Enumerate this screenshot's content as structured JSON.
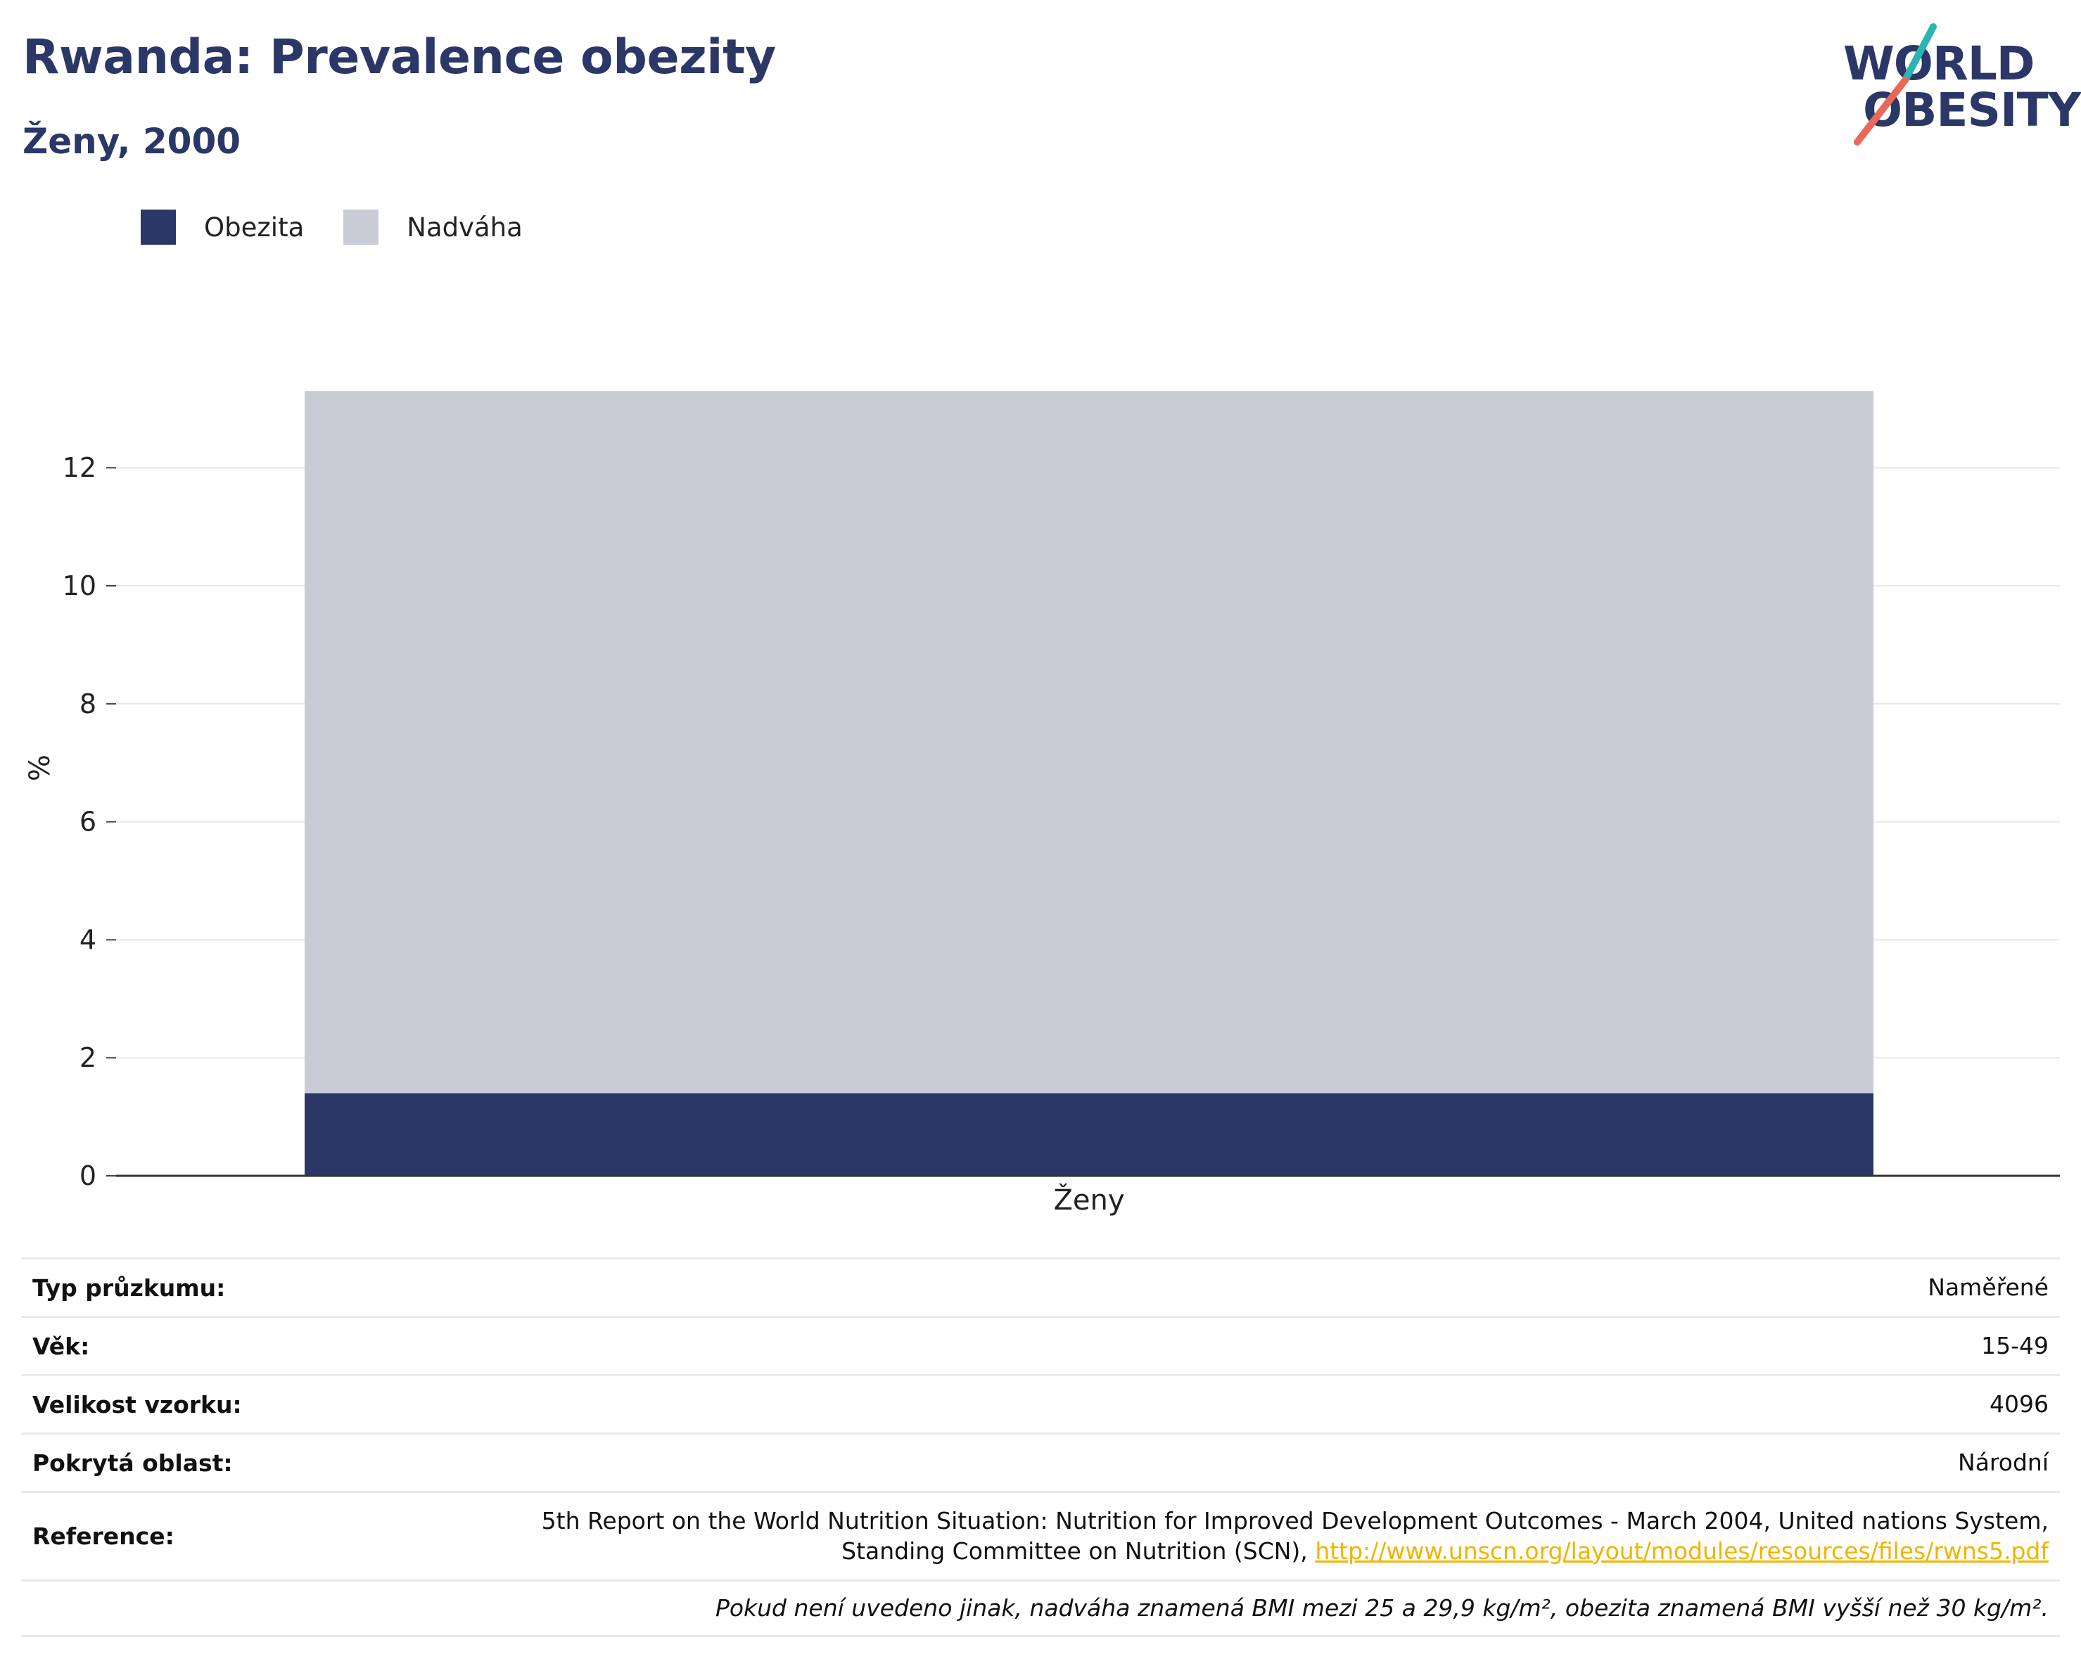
{
  "header": {
    "title": "Rwanda: Prevalence obezity",
    "subtitle": "Ženy, 2000"
  },
  "logo": {
    "line1": "WORLD",
    "line2": "OBESITY",
    "accent_teal": "#2ab5b0",
    "accent_coral": "#e8685a"
  },
  "colors": {
    "obesity": "#2b3766",
    "overweight": "#c9ccd7",
    "axis": "#333333",
    "grid": "#e8e8e8"
  },
  "chart_data": {
    "type": "bar",
    "stacked": true,
    "categories": [
      "Ženy"
    ],
    "series": [
      {
        "name": "Obezita",
        "values": [
          1.4
        ]
      },
      {
        "name": "Nadváha",
        "values": [
          11.9
        ]
      }
    ],
    "ylabel": "%",
    "ylim": [
      0,
      14
    ],
    "yticks": [
      0,
      2,
      4,
      6,
      8,
      10,
      12
    ],
    "grid": true,
    "legend_position": "top-left"
  },
  "info": {
    "rows": [
      {
        "label": "Typ průzkumu:",
        "value": "Naměřené"
      },
      {
        "label": "Věk:",
        "value": "15-49"
      },
      {
        "label": "Velikost vzorku:",
        "value": "4096"
      },
      {
        "label": "Pokrytá oblast:",
        "value": "Národní"
      }
    ],
    "reference_label": "Reference:",
    "reference_line1": "5th Report on the World Nutrition Situation: Nutrition for Improved Development Outcomes - March 2004, United nations System,",
    "reference_line2": "Standing Committee on Nutrition (SCN),",
    "reference_link": "http://www.unscn.org/layout/modules/resources/files/rwns5.pdf",
    "note": "Pokud není uvedeno jinak, nadváha znamená BMI mezi 25 a 29,9 kg/m², obezita znamená BMI vyšší než 30 kg/m²."
  }
}
